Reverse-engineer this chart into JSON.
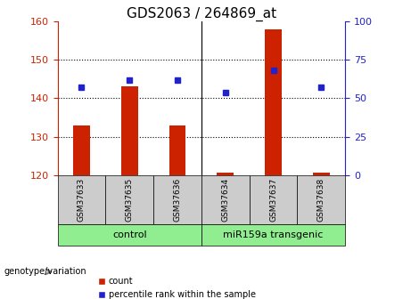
{
  "title": "GDS2063 / 264869_at",
  "categories": [
    "GSM37633",
    "GSM37635",
    "GSM37636",
    "GSM37634",
    "GSM37637",
    "GSM37638"
  ],
  "count_values": [
    133,
    143,
    133,
    120.5,
    158,
    120.5
  ],
  "percentile_values": [
    57,
    62,
    62,
    54,
    68,
    57
  ],
  "bar_baseline": 120,
  "ylim_left": [
    120,
    160
  ],
  "ylim_right": [
    0,
    100
  ],
  "yticks_left": [
    120,
    130,
    140,
    150,
    160
  ],
  "yticks_right": [
    0,
    25,
    50,
    75,
    100
  ],
  "bar_color": "#cc2200",
  "dot_color": "#2222cc",
  "control_label": "control",
  "transgenic_label": "miR159a transgenic",
  "genotype_label": "genotype/variation",
  "legend_count_label": "count",
  "legend_pct_label": "percentile rank within the sample",
  "title_fontsize": 11,
  "tick_fontsize": 8,
  "bar_width": 0.35
}
